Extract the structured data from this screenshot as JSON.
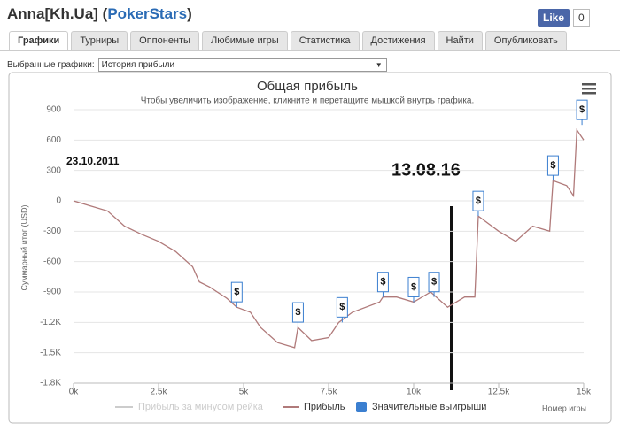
{
  "header": {
    "player": "Anna[Kh.Ua]",
    "site": "PokerStars",
    "like": "Like",
    "like_count": "0"
  },
  "tabs": [
    "Графики",
    "Турниры",
    "Оппоненты",
    "Любимые игры",
    "Статистика",
    "Достижения",
    "Найти",
    "Опубликовать"
  ],
  "selector": {
    "label": "Выбранные графики:",
    "value": "История прибыли"
  },
  "chart_data": {
    "type": "line",
    "title": "Общая прибыль",
    "subtitle": "Чтобы увеличить изображение, кликните и перетащите мышкой внутрь графика.",
    "y_label": "Суммарный итог (USD)",
    "x_label": "Номер игры",
    "annotations": [
      "23.10.2011",
      "13.08.16"
    ],
    "legend_inactive": "Прибыль за минусом рейка",
    "marker_symbol": "$",
    "xlim": [
      0,
      15000
    ],
    "xticks": [
      {
        "value": 0,
        "label": "0k"
      },
      {
        "value": 2500,
        "label": "2.5k"
      },
      {
        "value": 5000,
        "label": "5k"
      },
      {
        "value": 7500,
        "label": "7.5k"
      },
      {
        "value": 10000,
        "label": "10k"
      },
      {
        "value": 12500,
        "label": "12.5k"
      },
      {
        "value": 15000,
        "label": "15k"
      }
    ],
    "ylim": [
      -1800,
      900
    ],
    "yticks": [
      900,
      600,
      300,
      0,
      -300,
      -600,
      -900,
      {
        "value": -1200,
        "label": "-1.2K"
      },
      {
        "value": -1500,
        "label": "-1.5K"
      },
      {
        "value": -1800,
        "label": "-1.8K"
      }
    ],
    "grid": true,
    "series": [
      {
        "name": "Прибыль",
        "color": "#b07a7a",
        "x": [
          0,
          500,
          1000,
          1500,
          2000,
          2500,
          3000,
          3500,
          3700,
          4000,
          4500,
          4800,
          5200,
          5500,
          6000,
          6500,
          6600,
          7000,
          7500,
          7800,
          8200,
          9000,
          9100,
          9500,
          10000,
          10500,
          11000,
          11500,
          11800,
          11900,
          12500,
          13000,
          13500,
          14000,
          14100,
          14500,
          14700,
          14800,
          15000
        ],
        "values": [
          0,
          -50,
          -100,
          -250,
          -330,
          -400,
          -500,
          -650,
          -800,
          -850,
          -960,
          -1050,
          -1100,
          -1250,
          -1400,
          -1450,
          -1250,
          -1380,
          -1350,
          -1200,
          -1100,
          -1000,
          -950,
          -950,
          -1000,
          -900,
          -1050,
          -950,
          -950,
          -150,
          -300,
          -400,
          -250,
          -300,
          200,
          150,
          50,
          700,
          600
        ]
      },
      {
        "name": "Значительные выигрыши",
        "color": "#3b7fd0",
        "x": [
          4800,
          6600,
          7900,
          9100,
          10000,
          10600,
          11900,
          14100,
          14950
        ],
        "values": [
          -1050,
          -1250,
          -1200,
          -950,
          -1000,
          -950,
          -150,
          200,
          750
        ]
      }
    ]
  }
}
